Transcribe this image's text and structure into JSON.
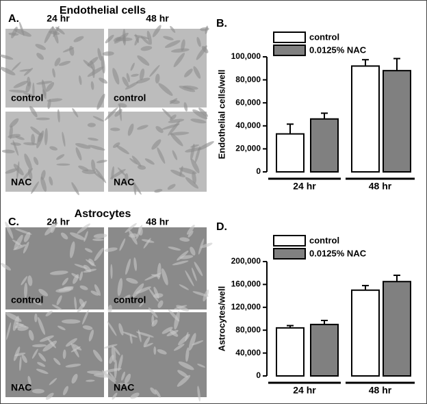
{
  "panels": [
    {
      "title": "Endothelial cells",
      "letter": "A.",
      "columns": [
        "24 hr",
        "48 hr"
      ],
      "rows": [
        "control",
        "NAC"
      ]
    },
    {
      "title": "Astrocytes",
      "letter": "C.",
      "columns": [
        "24 hr",
        "48 hr"
      ],
      "rows": [
        "control",
        "NAC"
      ]
    }
  ],
  "chart_data": [
    {
      "type": "bar",
      "panel_label": "B.",
      "y_label": "Endothelial cells/well",
      "categories": [
        "24 hr",
        "48 hr"
      ],
      "series": [
        {
          "name": "control",
          "color": "#ffffff",
          "values": [
            33000,
            92000
          ],
          "errors": [
            8500,
            5500
          ]
        },
        {
          "name": "0.0125% NAC",
          "color": "#808080",
          "values": [
            46000,
            88000
          ],
          "errors": [
            5000,
            10500
          ]
        }
      ],
      "ylim": [
        0,
        100000
      ],
      "yticks": [
        0,
        {
          "value": 20000,
          "label": "20,000"
        },
        {
          "value": 40000,
          "label": "40,000"
        },
        {
          "value": 60000,
          "label": "60,000"
        },
        {
          "value": 80000,
          "label": "80,000"
        },
        {
          "value": 100000,
          "label": "100,000"
        }
      ]
    },
    {
      "type": "bar",
      "panel_label": "D.",
      "y_label": "Astrocytes/well",
      "categories": [
        "24 hr",
        "48 hr"
      ],
      "series": [
        {
          "name": "control",
          "color": "#ffffff",
          "values": [
            84000,
            150000
          ],
          "errors": [
            4000,
            8000
          ]
        },
        {
          "name": "0.0125% NAC",
          "color": "#808080",
          "values": [
            90000,
            165000
          ],
          "errors": [
            7000,
            11000
          ]
        }
      ],
      "ylim": [
        0,
        200000
      ],
      "yticks": [
        0,
        {
          "value": 40000,
          "label": "40,000"
        },
        {
          "value": 80000,
          "label": "80,000"
        },
        {
          "value": 120000,
          "label": "120,000"
        },
        {
          "value": 160000,
          "label": "160,000"
        },
        {
          "value": 200000,
          "label": "200,000"
        }
      ]
    }
  ]
}
